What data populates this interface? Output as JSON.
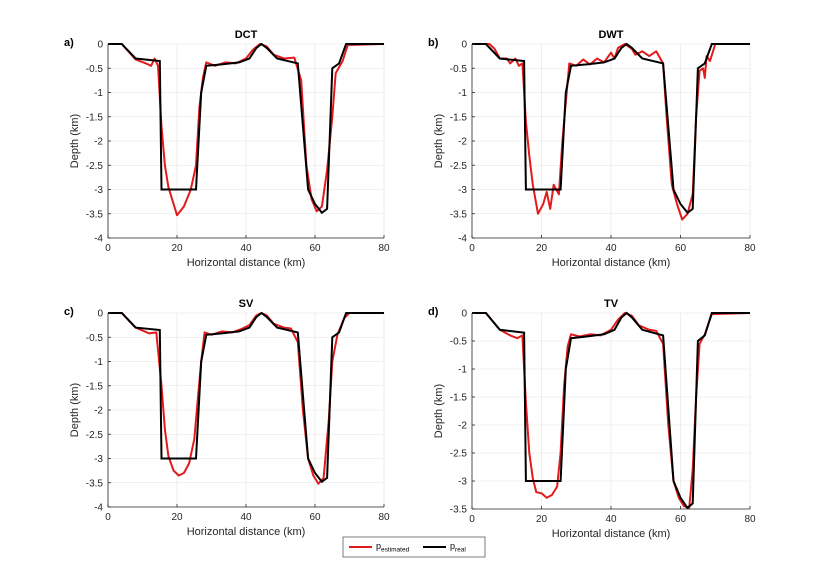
{
  "chart_data": {
    "type": "line",
    "xlabel": "Horizontal distance (km)",
    "ylabel": "Depth (km)",
    "legend": {
      "placement": "bottom-center",
      "entries": [
        {
          "base": "p",
          "sub": "estimated",
          "color": "#e31a1c"
        },
        {
          "base": "p",
          "sub": "real",
          "color": "#000000"
        }
      ]
    },
    "panels": [
      {
        "label": "a)",
        "title": "DCT",
        "xlim": [
          0,
          80
        ],
        "ylim": [
          -4,
          0
        ],
        "xticks": [
          0,
          20,
          40,
          60,
          80
        ],
        "yticks": [
          0,
          -0.5,
          -1,
          -1.5,
          -2,
          -2.5,
          -3,
          -3.5,
          -4
        ],
        "real": [
          [
            0,
            0
          ],
          [
            4,
            0
          ],
          [
            8,
            -0.3
          ],
          [
            15,
            -0.35
          ],
          [
            15.5,
            -3
          ],
          [
            25.5,
            -3
          ],
          [
            27,
            -1
          ],
          [
            28.5,
            -0.45
          ],
          [
            33,
            -0.42
          ],
          [
            38,
            -0.38
          ],
          [
            41,
            -0.3
          ],
          [
            43,
            -0.08
          ],
          [
            44.5,
            0
          ],
          [
            46,
            -0.08
          ],
          [
            49,
            -0.3
          ],
          [
            55,
            -0.4
          ],
          [
            58,
            -3
          ],
          [
            60,
            -3.3
          ],
          [
            62,
            -3.48
          ],
          [
            63.5,
            -3.4
          ],
          [
            65,
            -0.5
          ],
          [
            67,
            -0.4
          ],
          [
            69,
            0
          ],
          [
            80,
            0
          ]
        ],
        "estimated": [
          [
            0,
            0
          ],
          [
            4,
            0
          ],
          [
            8,
            -0.32
          ],
          [
            11,
            -0.4
          ],
          [
            12.5,
            -0.45
          ],
          [
            13.5,
            -0.3
          ],
          [
            14.5,
            -0.45
          ],
          [
            15.5,
            -1.7
          ],
          [
            16.5,
            -2.5
          ],
          [
            17.5,
            -2.95
          ],
          [
            19,
            -3.3
          ],
          [
            20,
            -3.53
          ],
          [
            22,
            -3.35
          ],
          [
            24,
            -3
          ],
          [
            25.5,
            -2.5
          ],
          [
            26.5,
            -1.3
          ],
          [
            27.5,
            -0.7
          ],
          [
            28.5,
            -0.38
          ],
          [
            31,
            -0.45
          ],
          [
            34,
            -0.38
          ],
          [
            37,
            -0.4
          ],
          [
            40,
            -0.3
          ],
          [
            42,
            -0.12
          ],
          [
            44,
            0
          ],
          [
            46,
            -0.05
          ],
          [
            48,
            -0.22
          ],
          [
            51,
            -0.3
          ],
          [
            54,
            -0.28
          ],
          [
            56,
            -0.75
          ],
          [
            57.5,
            -2.5
          ],
          [
            59,
            -3.2
          ],
          [
            60.5,
            -3.45
          ],
          [
            62,
            -3.35
          ],
          [
            63.5,
            -2.6
          ],
          [
            65,
            -1.5
          ],
          [
            66,
            -0.6
          ],
          [
            68,
            -0.35
          ],
          [
            69.5,
            -0.02
          ],
          [
            80,
            0
          ]
        ]
      },
      {
        "label": "b)",
        "title": "DWT",
        "xlim": [
          0,
          80
        ],
        "ylim": [
          -4,
          0
        ],
        "xticks": [
          0,
          20,
          40,
          60,
          80
        ],
        "yticks": [
          0,
          -0.5,
          -1,
          -1.5,
          -2,
          -2.5,
          -3,
          -3.5,
          -4
        ],
        "real": [
          [
            0,
            0
          ],
          [
            4,
            0
          ],
          [
            8,
            -0.3
          ],
          [
            15,
            -0.35
          ],
          [
            15.5,
            -3
          ],
          [
            25.5,
            -3
          ],
          [
            27,
            -1
          ],
          [
            28.5,
            -0.45
          ],
          [
            33,
            -0.42
          ],
          [
            38,
            -0.38
          ],
          [
            41,
            -0.3
          ],
          [
            43,
            -0.08
          ],
          [
            44.5,
            0
          ],
          [
            46,
            -0.08
          ],
          [
            49,
            -0.3
          ],
          [
            55,
            -0.4
          ],
          [
            58,
            -3
          ],
          [
            60,
            -3.3
          ],
          [
            62,
            -3.48
          ],
          [
            63.5,
            -3.4
          ],
          [
            65,
            -0.5
          ],
          [
            67,
            -0.4
          ],
          [
            69,
            0
          ],
          [
            80,
            0
          ]
        ],
        "estimated": [
          [
            0,
            0
          ],
          [
            5,
            0
          ],
          [
            6.5,
            -0.1
          ],
          [
            8,
            -0.3
          ],
          [
            10,
            -0.3
          ],
          [
            11,
            -0.4
          ],
          [
            12.5,
            -0.3
          ],
          [
            13.5,
            -0.45
          ],
          [
            14.5,
            -0.4
          ],
          [
            15.5,
            -1.6
          ],
          [
            16.5,
            -2.3
          ],
          [
            17.5,
            -2.9
          ],
          [
            19,
            -3.5
          ],
          [
            20.5,
            -3.3
          ],
          [
            21.5,
            -3.05
          ],
          [
            22.5,
            -3.4
          ],
          [
            23.5,
            -2.9
          ],
          [
            25,
            -3.1
          ],
          [
            26,
            -2
          ],
          [
            27,
            -1.2
          ],
          [
            28,
            -0.4
          ],
          [
            30,
            -0.45
          ],
          [
            32,
            -0.32
          ],
          [
            34,
            -0.42
          ],
          [
            36,
            -0.3
          ],
          [
            38,
            -0.38
          ],
          [
            40,
            -0.18
          ],
          [
            41,
            -0.3
          ],
          [
            42,
            -0.08
          ],
          [
            44,
            0
          ],
          [
            45,
            -0.05
          ],
          [
            46,
            -0.1
          ],
          [
            47,
            -0.22
          ],
          [
            49,
            -0.15
          ],
          [
            51,
            -0.25
          ],
          [
            53,
            -0.15
          ],
          [
            55,
            -0.4
          ],
          [
            56,
            -1.5
          ],
          [
            57.5,
            -2.9
          ],
          [
            59,
            -3.3
          ],
          [
            60.5,
            -3.62
          ],
          [
            62,
            -3.5
          ],
          [
            63.5,
            -3.1
          ],
          [
            64.5,
            -1.5
          ],
          [
            65.5,
            -0.55
          ],
          [
            66.5,
            -0.5
          ],
          [
            67,
            -0.7
          ],
          [
            67.5,
            -0.25
          ],
          [
            68.5,
            -0.35
          ],
          [
            70,
            0
          ],
          [
            80,
            0
          ]
        ]
      },
      {
        "label": "c)",
        "title": "SV",
        "xlim": [
          0,
          80
        ],
        "ylim": [
          -4,
          0
        ],
        "xticks": [
          0,
          20,
          40,
          60,
          80
        ],
        "yticks": [
          0,
          -0.5,
          -1,
          -1.5,
          -2,
          -2.5,
          -3,
          -3.5,
          -4
        ],
        "real": [
          [
            0,
            0
          ],
          [
            4,
            0
          ],
          [
            8,
            -0.3
          ],
          [
            15,
            -0.35
          ],
          [
            15.5,
            -3
          ],
          [
            25.5,
            -3
          ],
          [
            27,
            -1
          ],
          [
            28.5,
            -0.45
          ],
          [
            33,
            -0.42
          ],
          [
            38,
            -0.38
          ],
          [
            41,
            -0.3
          ],
          [
            43,
            -0.08
          ],
          [
            44.5,
            0
          ],
          [
            46,
            -0.08
          ],
          [
            49,
            -0.3
          ],
          [
            55,
            -0.4
          ],
          [
            58,
            -3
          ],
          [
            60,
            -3.3
          ],
          [
            62,
            -3.48
          ],
          [
            63.5,
            -3.4
          ],
          [
            65,
            -0.5
          ],
          [
            67,
            -0.4
          ],
          [
            69,
            0
          ],
          [
            80,
            0
          ]
        ],
        "estimated": [
          [
            0,
            0
          ],
          [
            4,
            0
          ],
          [
            8,
            -0.3
          ],
          [
            12,
            -0.42
          ],
          [
            14,
            -0.4
          ],
          [
            15.5,
            -1.5
          ],
          [
            16.5,
            -2.4
          ],
          [
            17.5,
            -2.95
          ],
          [
            19,
            -3.25
          ],
          [
            20.5,
            -3.35
          ],
          [
            22,
            -3.3
          ],
          [
            23.5,
            -3.1
          ],
          [
            25,
            -2.6
          ],
          [
            26,
            -1.8
          ],
          [
            27,
            -1
          ],
          [
            28,
            -0.4
          ],
          [
            30,
            -0.45
          ],
          [
            33,
            -0.38
          ],
          [
            36,
            -0.4
          ],
          [
            39,
            -0.32
          ],
          [
            41,
            -0.25
          ],
          [
            43,
            -0.05
          ],
          [
            44.5,
            0
          ],
          [
            46,
            -0.05
          ],
          [
            48,
            -0.22
          ],
          [
            51,
            -0.3
          ],
          [
            53,
            -0.32
          ],
          [
            55,
            -0.6
          ],
          [
            56.5,
            -2
          ],
          [
            58,
            -3
          ],
          [
            59.5,
            -3.35
          ],
          [
            61,
            -3.52
          ],
          [
            62.5,
            -3.4
          ],
          [
            64,
            -2.2
          ],
          [
            65,
            -1
          ],
          [
            66.5,
            -0.45
          ],
          [
            68.5,
            -0.1
          ],
          [
            70,
            0
          ],
          [
            80,
            0
          ]
        ]
      },
      {
        "label": "d)",
        "title": "TV",
        "xlim": [
          0,
          80
        ],
        "ylim": [
          -3.5,
          0
        ],
        "xticks": [
          0,
          20,
          40,
          60,
          80
        ],
        "yticks": [
          0,
          -0.5,
          -1,
          -1.5,
          -2,
          -2.5,
          -3,
          -3.5
        ],
        "real": [
          [
            0,
            0
          ],
          [
            4,
            0
          ],
          [
            8,
            -0.3
          ],
          [
            15,
            -0.35
          ],
          [
            15.5,
            -3
          ],
          [
            25.5,
            -3
          ],
          [
            27,
            -1
          ],
          [
            28.5,
            -0.45
          ],
          [
            33,
            -0.42
          ],
          [
            38,
            -0.38
          ],
          [
            41,
            -0.3
          ],
          [
            43,
            -0.08
          ],
          [
            44.5,
            0
          ],
          [
            46,
            -0.08
          ],
          [
            49,
            -0.3
          ],
          [
            55,
            -0.4
          ],
          [
            58,
            -3
          ],
          [
            60,
            -3.3
          ],
          [
            62,
            -3.48
          ],
          [
            63.5,
            -3.4
          ],
          [
            65,
            -0.5
          ],
          [
            67,
            -0.4
          ],
          [
            69,
            0
          ],
          [
            80,
            0
          ]
        ],
        "estimated": [
          [
            0,
            0
          ],
          [
            4,
            0
          ],
          [
            8,
            -0.3
          ],
          [
            11,
            -0.4
          ],
          [
            13,
            -0.45
          ],
          [
            14.5,
            -0.4
          ],
          [
            15.5,
            -1.6
          ],
          [
            16.5,
            -2.5
          ],
          [
            17.5,
            -2.95
          ],
          [
            18.5,
            -3.2
          ],
          [
            20,
            -3.22
          ],
          [
            21.5,
            -3.3
          ],
          [
            23,
            -3.25
          ],
          [
            24.5,
            -3.1
          ],
          [
            25.5,
            -2.5
          ],
          [
            26.5,
            -1.3
          ],
          [
            27.5,
            -0.6
          ],
          [
            28.5,
            -0.38
          ],
          [
            31,
            -0.42
          ],
          [
            34,
            -0.38
          ],
          [
            37,
            -0.4
          ],
          [
            40,
            -0.3
          ],
          [
            42,
            -0.12
          ],
          [
            44,
            0
          ],
          [
            46,
            -0.05
          ],
          [
            48,
            -0.22
          ],
          [
            51,
            -0.3
          ],
          [
            53,
            -0.32
          ],
          [
            55,
            -0.55
          ],
          [
            56.5,
            -2
          ],
          [
            58,
            -3
          ],
          [
            59.5,
            -3.3
          ],
          [
            61,
            -3.45
          ],
          [
            62.5,
            -3.48
          ],
          [
            63.5,
            -2.8
          ],
          [
            64.5,
            -1.5
          ],
          [
            65.5,
            -0.55
          ],
          [
            67,
            -0.38
          ],
          [
            69,
            -0.02
          ],
          [
            80,
            0
          ]
        ]
      }
    ]
  }
}
